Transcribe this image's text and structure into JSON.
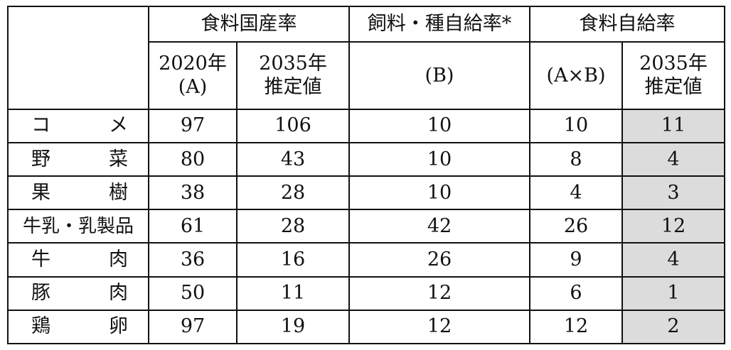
{
  "headers": {
    "food_domestic": "食料国産率",
    "feed_seed": "飼料・種自給率*",
    "food_self": "食料自給率",
    "year2020": "2020年",
    "labelA": "(A)",
    "year2035a": "2035年",
    "est_a": "推定値",
    "labelB": "(B)",
    "labelAxB": "(A×B)",
    "year2035b": "2035年",
    "est_b": "推定値"
  },
  "rows": [
    {
      "c1": "コ",
      "c2": "メ",
      "a2020": "97",
      "a2035": "106",
      "b": "10",
      "axb": "10",
      "s2035": "11"
    },
    {
      "c1": "野",
      "c2": "菜",
      "a2020": "80",
      "a2035": "43",
      "b": "10",
      "axb": "8",
      "s2035": "4"
    },
    {
      "c1": "果",
      "c2": "樹",
      "a2020": "38",
      "a2035": "28",
      "b": "10",
      "axb": "4",
      "s2035": "3"
    },
    {
      "full": "牛乳・乳製品",
      "a2020": "61",
      "a2035": "28",
      "b": "42",
      "axb": "26",
      "s2035": "12"
    },
    {
      "c1": "牛",
      "c2": "肉",
      "a2020": "36",
      "a2035": "16",
      "b": "26",
      "axb": "9",
      "s2035": "4"
    },
    {
      "c1": "豚",
      "c2": "肉",
      "a2020": "50",
      "a2035": "11",
      "b": "12",
      "axb": "6",
      "s2035": "1"
    },
    {
      "c1": "鶏",
      "c2": "卵",
      "a2020": "97",
      "a2035": "19",
      "b": "12",
      "axb": "12",
      "s2035": "2"
    }
  ]
}
